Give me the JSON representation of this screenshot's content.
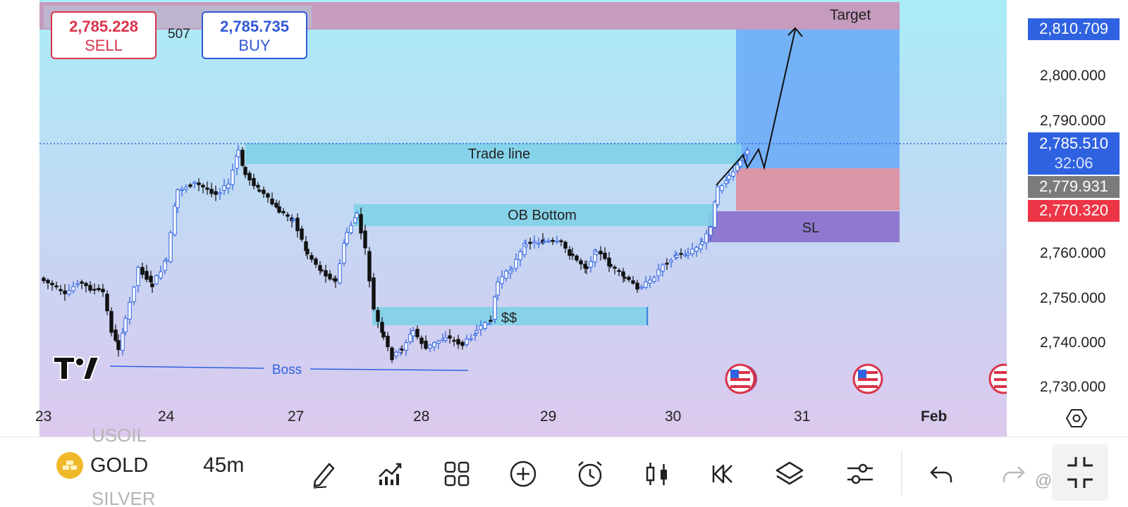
{
  "order_panel": {
    "sell_price": "2,785.228",
    "sell_label": "SELL",
    "spread": "507",
    "buy_price": "2,785.735",
    "buy_label": "BUY"
  },
  "price_scale": {
    "ticks": [
      "2,800.000",
      "2,790.000",
      "2,760.000",
      "2,750.000",
      "2,740.000",
      "2,730.000"
    ],
    "target_tag": "2,810.709",
    "current_price": "2,785.510",
    "countdown": "32:06",
    "entry_tag": "2,779.931",
    "stop_tag": "2,770.320"
  },
  "time_axis": {
    "labels": [
      "23",
      "24",
      "27",
      "28",
      "29",
      "30",
      "31",
      "Feb"
    ]
  },
  "annotations": {
    "target": "Target",
    "trade_line": "Trade line",
    "ob_bottom": "OB Bottom",
    "liquidity": "$$",
    "boss": "Boss",
    "stop_loss": "SL"
  },
  "bottom_bar": {
    "symbol_prev": "USOIL",
    "symbol": "GOLD",
    "symbol_next": "SILVER",
    "interval": "45m",
    "watermark": "@fx-duck"
  },
  "colors": {
    "buy": "#3159d6",
    "sell": "#d9334a",
    "trade_zone": "#7fd2e8",
    "profit_zone": "#6aa8f7",
    "loss_zone": "#dc95a6",
    "sl_zone": "#8f78cf",
    "target_zone": "#c59bbe",
    "candle_up": "#2f62e0",
    "candle_down": "#111111"
  },
  "icons": [
    "pencil-icon",
    "indicators-icon",
    "grid-icon",
    "plus-circle-icon",
    "alarm-icon",
    "candles-icon",
    "replay-icon",
    "layers-icon",
    "settings-sliders-icon",
    "undo-icon",
    "redo-icon",
    "collapse-icon",
    "settings-hexagon-icon"
  ]
}
